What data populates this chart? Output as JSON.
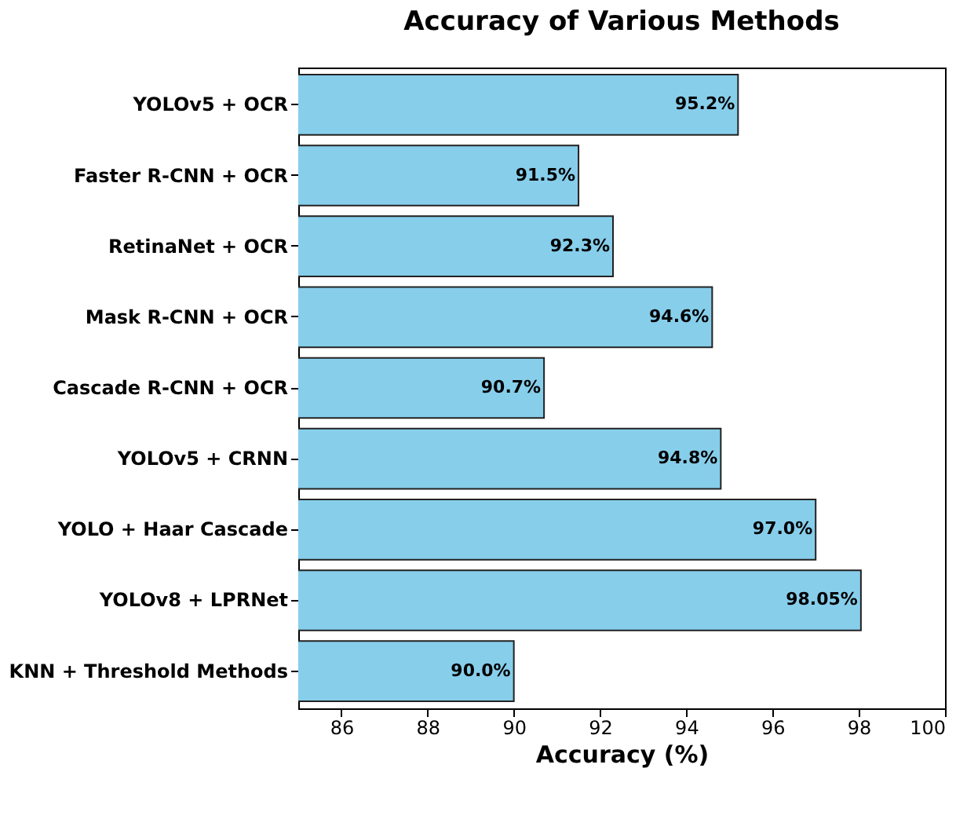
{
  "chart_data": {
    "type": "bar",
    "orientation": "horizontal",
    "title": "Accuracy of Various Methods",
    "xlabel": "Accuracy (%)",
    "categories": [
      "YOLOv5 + OCR",
      "Faster R-CNN + OCR",
      "RetinaNet + OCR",
      "Mask R-CNN + OCR",
      "Cascade R-CNN + OCR",
      "YOLOv5 + CRNN",
      "YOLO + Haar Cascade",
      "YOLOv8 + LPRNet",
      "KNN + Threshold Methods"
    ],
    "values": [
      95.2,
      91.5,
      92.3,
      94.6,
      90.7,
      94.8,
      97.0,
      98.05,
      90.0
    ],
    "value_labels": [
      "95.2%",
      "91.5%",
      "92.3%",
      "94.6%",
      "90.7%",
      "94.8%",
      "97.0%",
      "98.05%",
      "90.0%"
    ],
    "color": "#87ceeb",
    "xlim": [
      85,
      100
    ],
    "xticks": [
      86,
      88,
      90,
      92,
      94,
      96,
      98,
      100
    ],
    "grid": false
  }
}
